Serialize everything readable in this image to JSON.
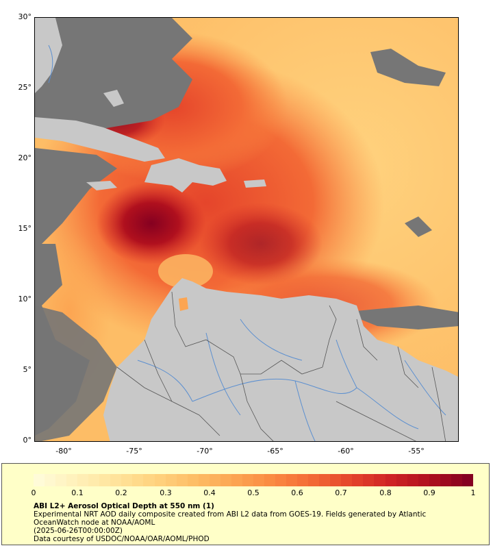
{
  "map": {
    "lat_labels": [
      "30°",
      "25°",
      "20°",
      "15°",
      "10°",
      "5°",
      "0°"
    ],
    "lon_labels": [
      "-80°",
      "-75°",
      "-70°",
      "-65°",
      "-60°",
      "-55°"
    ],
    "extent": {
      "lon_min": -82,
      "lon_max": -52,
      "lat_min": 0,
      "lat_max": 30
    },
    "colors": {
      "land": "#c8c8c8",
      "no_data": "#767676",
      "rivers": "#5b8fd0",
      "borders": "#555555"
    }
  },
  "legend": {
    "ticks": [
      "0",
      "0.1",
      "0.2",
      "0.3",
      "0.4",
      "0.5",
      "0.6",
      "0.7",
      "0.8",
      "0.9",
      "1"
    ],
    "title": "ABI L2+ Aerosol Optical Depth at 550 nm (1)",
    "description": "Experimental NRT AOD daily composite created from ABI L2 data from GOES-19. Fields generated by Atlantic OceanWatch node at NOAA/AOML",
    "timestamp": "(2025-06-26T00:00:00Z)",
    "credit": "Data courtesy of USDOC/NOAA/OAR/AOML/PHOD",
    "scale_colors": [
      "#fffbd8",
      "#fff0b8",
      "#ffe39a",
      "#ffd27e",
      "#fdbd66",
      "#fca552",
      "#fa8a42",
      "#f36a36",
      "#e5452b",
      "#cf2424",
      "#b0101e",
      "#850020"
    ]
  }
}
